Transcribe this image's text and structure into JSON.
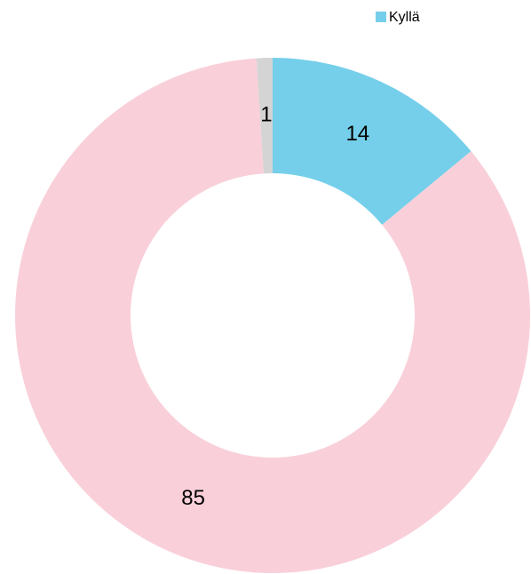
{
  "chart_data": {
    "type": "donut",
    "categories": [
      "Kyllä",
      null,
      null
    ],
    "values": [
      14,
      85,
      1
    ],
    "colors": [
      "#75cfea",
      "#f9d0da",
      "#d4d4d4"
    ],
    "legend": "top-right"
  }
}
